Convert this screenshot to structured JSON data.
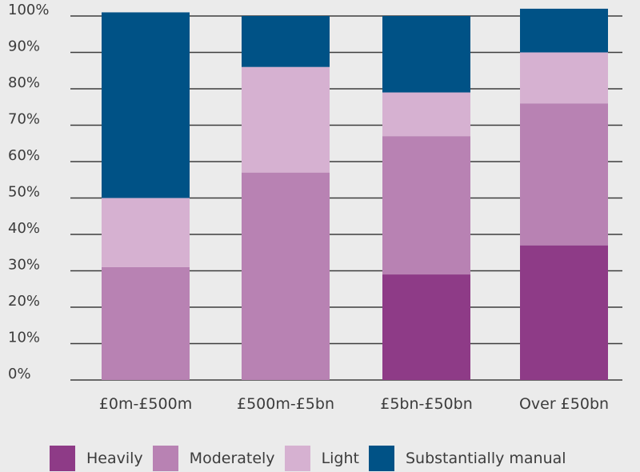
{
  "chart_data": {
    "type": "bar",
    "stacked": true,
    "categories": [
      "£0m-£500m",
      "£500m-£5bn",
      "£5bn-£50bn",
      "Over £50bn"
    ],
    "series": [
      {
        "name": "Heavily",
        "color": "#8e3b87",
        "values": [
          0,
          0,
          29,
          37
        ]
      },
      {
        "name": "Moderately",
        "color": "#b882b3",
        "values": [
          31,
          57,
          38,
          39
        ]
      },
      {
        "name": "Light",
        "color": "#d6b1d1",
        "values": [
          19,
          29,
          12,
          14
        ]
      },
      {
        "name": "Substantially manual",
        "color": "#005286",
        "values": [
          51,
          14,
          21,
          12
        ]
      }
    ],
    "yticks": [
      "0%",
      "10%",
      "20%",
      "30%",
      "40%",
      "50%",
      "60%",
      "70%",
      "80%",
      "90%",
      "100%"
    ],
    "ylim": [
      0,
      100
    ],
    "grid": true,
    "legend_position": "bottom"
  }
}
